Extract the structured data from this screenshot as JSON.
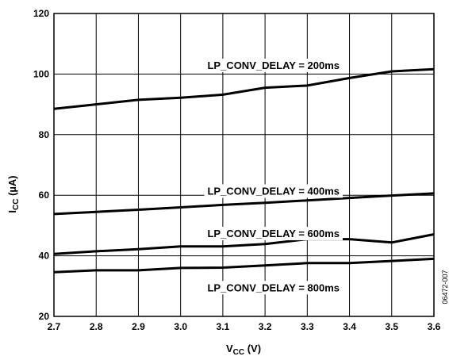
{
  "chart_data": {
    "type": "line",
    "xlabel": "V",
    "xlabel_sub": "CC",
    "xlabel_unit": " (V)",
    "ylabel": "I",
    "ylabel_sub": "CC",
    "ylabel_unit": " (µA)",
    "xlim": [
      2.7,
      3.6
    ],
    "ylim": [
      20,
      120
    ],
    "x_ticks": [
      2.7,
      2.8,
      2.9,
      3.0,
      3.1,
      3.2,
      3.3,
      3.4,
      3.5,
      3.6
    ],
    "x_tick_labels": [
      "2.7",
      "2.8",
      "2.9",
      "3.0",
      "3.1",
      "3.2",
      "3.3",
      "3.4",
      "3.5",
      "3.6"
    ],
    "y_ticks": [
      20,
      40,
      60,
      80,
      100,
      120
    ],
    "y_tick_labels": [
      "20",
      "40",
      "60",
      "80",
      "100",
      "120"
    ],
    "grid": true,
    "legend": "none",
    "figure_id": "06472-007",
    "series": [
      {
        "name": "LP_CONV_DELAY = 200ms",
        "x": [
          2.7,
          2.8,
          2.9,
          3.0,
          3.1,
          3.2,
          3.3,
          3.4,
          3.5,
          3.6
        ],
        "y": [
          88.5,
          90.0,
          91.5,
          92.2,
          93.2,
          95.5,
          96.2,
          98.7,
          100.9,
          101.6
        ],
        "label_at": [
          3.22,
          103
        ]
      },
      {
        "name": "LP_CONV_DELAY = 400ms",
        "x": [
          2.7,
          2.8,
          2.9,
          3.0,
          3.1,
          3.2,
          3.3,
          3.4,
          3.5,
          3.6
        ],
        "y": [
          53.8,
          54.5,
          55.2,
          56.0,
          56.8,
          57.5,
          58.3,
          59.1,
          59.9,
          60.6
        ],
        "label_at": [
          3.22,
          61.5
        ]
      },
      {
        "name": "LP_CONV_DELAY = 600ms",
        "x": [
          2.7,
          2.8,
          2.9,
          3.0,
          3.1,
          3.2,
          3.3,
          3.4,
          3.5,
          3.6
        ],
        "y": [
          40.6,
          41.5,
          42.2,
          43.1,
          43.1,
          43.9,
          45.5,
          45.5,
          44.4,
          47.1
        ],
        "label_at": [
          3.22,
          47.5
        ]
      },
      {
        "name": "LP_CONV_DELAY = 800ms",
        "x": [
          2.7,
          2.8,
          2.9,
          3.0,
          3.1,
          3.2,
          3.3,
          3.4,
          3.5,
          3.6
        ],
        "y": [
          34.6,
          35.2,
          35.2,
          36.0,
          36.1,
          36.8,
          37.6,
          37.6,
          38.3,
          39.0
        ],
        "label_at": [
          3.22,
          29.6
        ]
      }
    ]
  }
}
